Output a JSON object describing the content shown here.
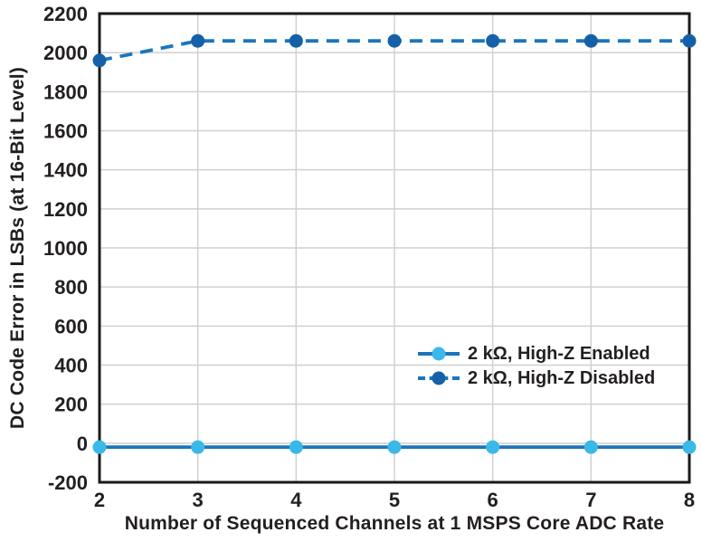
{
  "colors": {
    "background": "#ffffff",
    "axis": "#1a1a1a",
    "grid": "#cfd0d2",
    "text": "#231f20",
    "series_line_blue": "#1b75bc",
    "marker_cyan": "#3ab9e9",
    "marker_dark_blue": "#1560a8"
  },
  "chart_data": {
    "type": "line",
    "x": [
      2,
      3,
      4,
      5,
      6,
      7,
      8
    ],
    "series": [
      {
        "name": "2 kΩ, High-Z Enabled",
        "values": [
          -20,
          -20,
          -20,
          -20,
          -20,
          -20,
          -20
        ],
        "line_style": "solid",
        "line_color": "#1b75bc",
        "marker_color": "#3ab9e9"
      },
      {
        "name": "2 kΩ, High-Z Disabled",
        "values": [
          1960,
          2060,
          2060,
          2060,
          2060,
          2060,
          2060
        ],
        "line_style": "dashed",
        "line_color": "#1b75bc",
        "marker_color": "#1560a8"
      }
    ],
    "title": "",
    "xlabel": "Number of Sequenced Channels at 1 MSPS Core ADC Rate",
    "ylabel": "DC Code Error in LSBs (at 16-Bit Level)",
    "xlim": [
      2,
      8
    ],
    "ylim": [
      -200,
      2200
    ],
    "xtick_step": 1,
    "ytick_step": 200,
    "xticks": [
      2,
      3,
      4,
      5,
      6,
      7,
      8
    ],
    "yticks": [
      -200,
      0,
      200,
      400,
      600,
      800,
      1000,
      1200,
      1400,
      1600,
      1800,
      2000,
      2200
    ],
    "grid": true,
    "legend_position": "right-center"
  }
}
